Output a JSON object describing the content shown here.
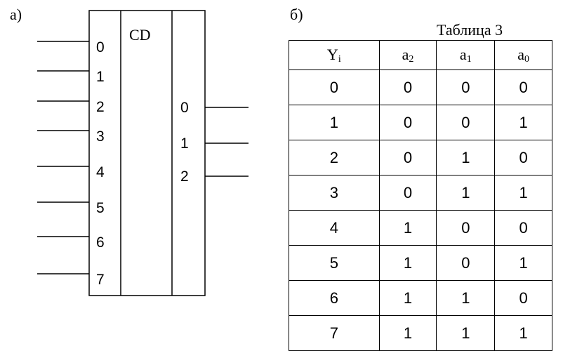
{
  "part_a_label": "а)",
  "part_b_label": "б)",
  "encoder": {
    "title": "CD",
    "inputs": [
      "0",
      "1",
      "2",
      "3",
      "4",
      "5",
      "6",
      "7"
    ],
    "outputs": [
      "0",
      "1",
      "2"
    ]
  },
  "table": {
    "caption": "Таблица 3",
    "headers": [
      {
        "base": "Y",
        "sub": "i"
      },
      {
        "base": "a",
        "sub": "2"
      },
      {
        "base": "a",
        "sub": "1"
      },
      {
        "base": "a",
        "sub": "0"
      }
    ],
    "rows": [
      [
        "0",
        "0",
        "0",
        "0"
      ],
      [
        "1",
        "0",
        "0",
        "1"
      ],
      [
        "2",
        "0",
        "1",
        "0"
      ],
      [
        "3",
        "0",
        "1",
        "1"
      ],
      [
        "4",
        "1",
        "0",
        "0"
      ],
      [
        "5",
        "1",
        "0",
        "1"
      ],
      [
        "6",
        "1",
        "1",
        "0"
      ],
      [
        "7",
        "1",
        "1",
        "1"
      ]
    ]
  }
}
